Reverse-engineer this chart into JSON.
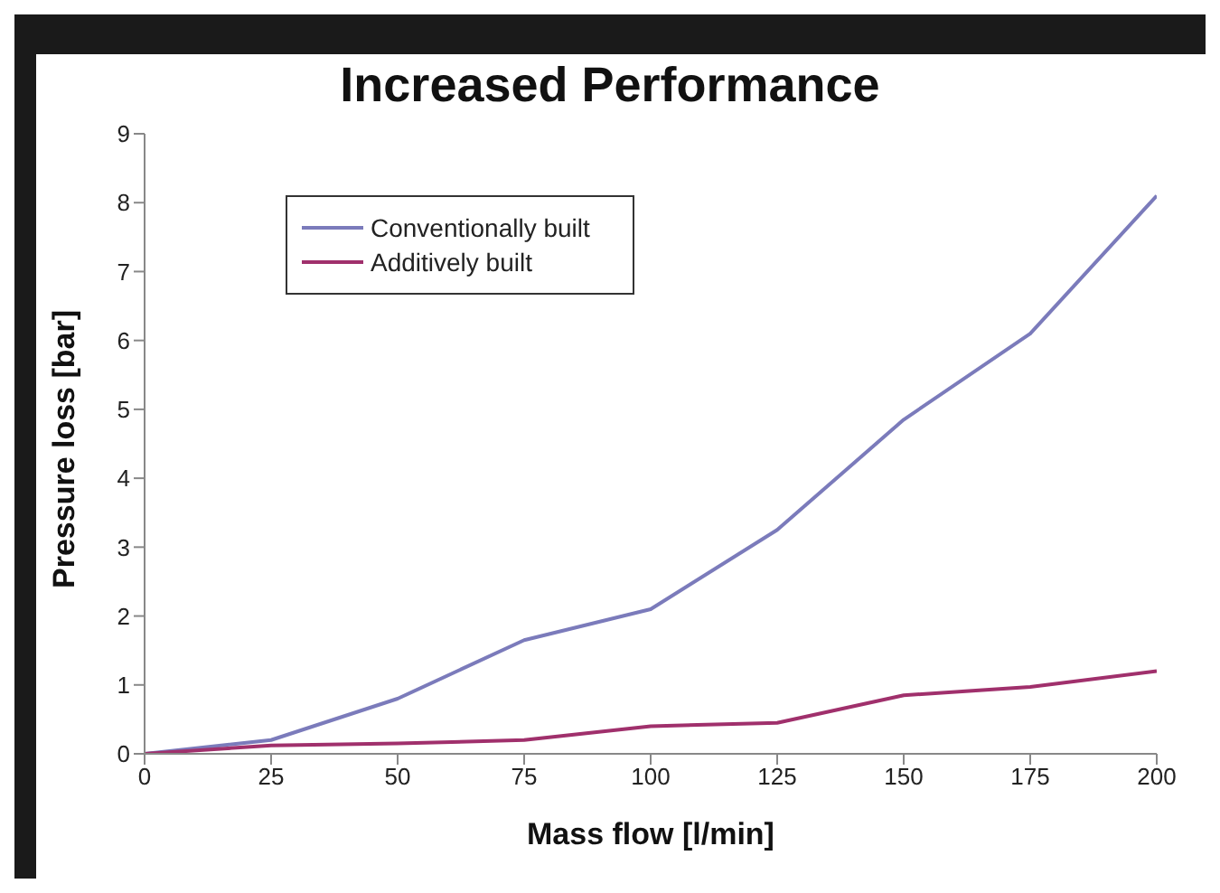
{
  "chart_data": {
    "type": "line",
    "title": "Increased Performance",
    "xlabel": "Mass flow [l/min]",
    "ylabel": "Pressure loss [bar]",
    "x": [
      0,
      25,
      50,
      75,
      100,
      125,
      150,
      175,
      200
    ],
    "series": [
      {
        "name": "Conventionally built",
        "color": "#7b7bbb",
        "values": [
          0,
          0.2,
          0.8,
          1.65,
          2.1,
          3.25,
          4.85,
          6.1,
          8.1
        ]
      },
      {
        "name": "Additively built",
        "color": "#a0306c",
        "values": [
          0,
          0.12,
          0.15,
          0.2,
          0.4,
          0.45,
          0.85,
          0.97,
          1.2
        ]
      }
    ],
    "xlim": [
      0,
      200
    ],
    "xticks": [
      0,
      25,
      50,
      75,
      100,
      125,
      150,
      175,
      200
    ],
    "ylim": [
      0,
      9
    ],
    "yticks": [
      0,
      1,
      2,
      3,
      4,
      5,
      6,
      7,
      8,
      9
    ],
    "grid": false,
    "legend": "top left",
    "marker": "none",
    "line_style": "solid"
  }
}
